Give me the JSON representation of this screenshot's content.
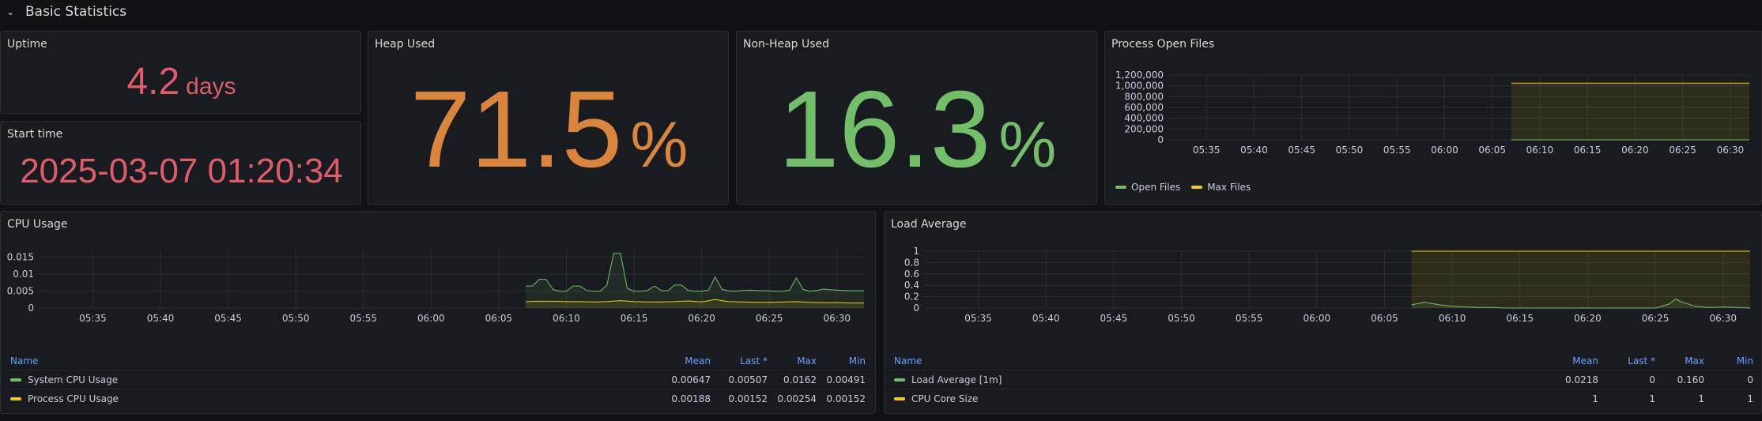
{
  "row": {
    "title": "Basic Statistics"
  },
  "colors": {
    "red": "#e05c6a",
    "orange": "#d9853b",
    "green": "#73bf69",
    "yellow": "#f2cc0c",
    "blue": "#6e9fff"
  },
  "uptime": {
    "title": "Uptime",
    "value": "4.2",
    "unit": "days"
  },
  "start_time": {
    "title": "Start time",
    "value": "2025-03-07 01:20:34"
  },
  "heap": {
    "title": "Heap Used",
    "value": "71.5",
    "unit": "%",
    "percent": 71.5
  },
  "nonheap": {
    "title": "Non-Heap Used",
    "value": "16.3",
    "unit": "%",
    "percent": 16.3
  },
  "time_ticks": [
    "05:35",
    "05:40",
    "05:45",
    "05:50",
    "05:55",
    "06:00",
    "06:05",
    "06:10",
    "06:15",
    "06:20",
    "06:25",
    "06:30"
  ],
  "open_files": {
    "title": "Process Open Files",
    "legend": [
      {
        "label": "Open Files",
        "color": "#73bf69"
      },
      {
        "label": "Max Files",
        "color": "#f2cc0c"
      }
    ]
  },
  "cpu": {
    "title": "CPU Usage",
    "headers": {
      "name": "Name",
      "mean": "Mean",
      "last": "Last *",
      "max": "Max",
      "min": "Min"
    },
    "rows": [
      {
        "name": "System CPU Usage",
        "color": "#73bf69",
        "mean": "0.00647",
        "last": "0.00507",
        "max": "0.0162",
        "min": "0.00491"
      },
      {
        "name": "Process CPU Usage",
        "color": "#f2cc0c",
        "mean": "0.00188",
        "last": "0.00152",
        "max": "0.00254",
        "min": "0.00152"
      }
    ]
  },
  "load": {
    "title": "Load Average",
    "headers": {
      "name": "Name",
      "mean": "Mean",
      "last": "Last *",
      "max": "Max",
      "min": "Min"
    },
    "rows": [
      {
        "name": "Load Average [1m]",
        "color": "#73bf69",
        "mean": "0.0218",
        "last": "0",
        "max": "0.160",
        "min": "0"
      },
      {
        "name": "CPU Core Size",
        "color": "#f2cc0c",
        "mean": "1",
        "last": "1",
        "max": "1",
        "min": "1"
      }
    ]
  },
  "chart_data": [
    {
      "type": "line",
      "title": "Process Open Files",
      "ytick_labels": [
        "1,200,000",
        "1,000,000",
        "800,000",
        "600,000",
        "400,000",
        "200,000",
        "0"
      ],
      "ylim": [
        0,
        1200000
      ],
      "x_start_min": 331,
      "x_end_min": 392,
      "series": [
        {
          "name": "Open Files",
          "color": "#73bf69",
          "x": [
            367,
            369,
            372,
            375,
            378,
            381,
            384,
            387,
            390,
            392
          ],
          "values": [
            0,
            0,
            0,
            0,
            0,
            0,
            0,
            0,
            0,
            0
          ]
        },
        {
          "name": "Max Files",
          "color": "#f2cc0c",
          "x": [
            367,
            369,
            372,
            375,
            378,
            381,
            384,
            387,
            390,
            392
          ],
          "values": [
            1048576,
            1048576,
            1048576,
            1048576,
            1048576,
            1048576,
            1048576,
            1048576,
            1048576,
            1048576
          ]
        }
      ]
    },
    {
      "type": "line",
      "title": "CPU Usage",
      "ytick_labels": [
        "0.015",
        "0.01",
        "0.005",
        "0"
      ],
      "ylim": [
        0,
        0.0175
      ],
      "x_start_min": 331,
      "x_end_min": 392,
      "series": [
        {
          "name": "System CPU Usage",
          "color": "#73bf69",
          "x": [
            367,
            367.5,
            368,
            368.5,
            369,
            369.5,
            370,
            370.5,
            371,
            371.5,
            372,
            372.5,
            373,
            373.5,
            374,
            374.5,
            375,
            375.5,
            376,
            376.5,
            377,
            377.5,
            378,
            378.5,
            379,
            379.5,
            380,
            380.5,
            381,
            381.5,
            382,
            382.5,
            383,
            383.5,
            384,
            384.5,
            385,
            385.5,
            386,
            386.5,
            387,
            387.5,
            388,
            388.5,
            389,
            389.5,
            390,
            390.5,
            391,
            391.5,
            392
          ],
          "values": [
            0.0065,
            0.0065,
            0.0085,
            0.0085,
            0.0055,
            0.005,
            0.005,
            0.0065,
            0.0065,
            0.0052,
            0.005,
            0.005,
            0.0068,
            0.0162,
            0.0162,
            0.0058,
            0.005,
            0.005,
            0.0052,
            0.0065,
            0.0052,
            0.0051,
            0.0068,
            0.0068,
            0.0052,
            0.005,
            0.005,
            0.0053,
            0.0092,
            0.0055,
            0.0051,
            0.005,
            0.0052,
            0.0053,
            0.0052,
            0.0051,
            0.0051,
            0.005,
            0.005,
            0.0053,
            0.0089,
            0.0055,
            0.005,
            0.0052,
            0.0056,
            0.0054,
            0.0053,
            0.0052,
            0.0051,
            0.0051,
            0.0051
          ]
        },
        {
          "name": "Process CPU Usage",
          "color": "#f2cc0c",
          "x": [
            367,
            368,
            369,
            370,
            371,
            372,
            373,
            374,
            375,
            376,
            377,
            378,
            379,
            380,
            381,
            382,
            383,
            384,
            385,
            386,
            387,
            388,
            389,
            390,
            391,
            392
          ],
          "values": [
            0.0019,
            0.002,
            0.002,
            0.0019,
            0.0019,
            0.0018,
            0.0019,
            0.0022,
            0.0019,
            0.0018,
            0.0018,
            0.0019,
            0.0021,
            0.0018,
            0.0025,
            0.0019,
            0.0018,
            0.0017,
            0.0017,
            0.0018,
            0.0019,
            0.0017,
            0.0016,
            0.0016,
            0.0015,
            0.0015
          ]
        }
      ]
    },
    {
      "type": "line",
      "title": "Load Average",
      "ytick_labels": [
        "1",
        "0.8",
        "0.6",
        "0.4",
        "0.2",
        "0"
      ],
      "ylim": [
        0,
        1
      ],
      "x_start_min": 331,
      "x_end_min": 392,
      "series": [
        {
          "name": "Load Average [1m]",
          "color": "#73bf69",
          "x": [
            367,
            368,
            369,
            370,
            371,
            372,
            373,
            374,
            375,
            376,
            377,
            378,
            379,
            380,
            381,
            382,
            383,
            384,
            385,
            386,
            386.5,
            387,
            388,
            389,
            390,
            391,
            392
          ],
          "values": [
            0.06,
            0.1,
            0.06,
            0.03,
            0.02,
            0.01,
            0.01,
            0,
            0,
            0,
            0,
            0,
            0,
            0,
            0,
            0,
            0,
            0,
            0,
            0.07,
            0.16,
            0.1,
            0.03,
            0.01,
            0.02,
            0.01,
            0
          ]
        },
        {
          "name": "CPU Core Size",
          "color": "#f2cc0c",
          "x": [
            367,
            372,
            377,
            382,
            387,
            392
          ],
          "values": [
            1,
            1,
            1,
            1,
            1,
            1
          ]
        }
      ]
    }
  ]
}
